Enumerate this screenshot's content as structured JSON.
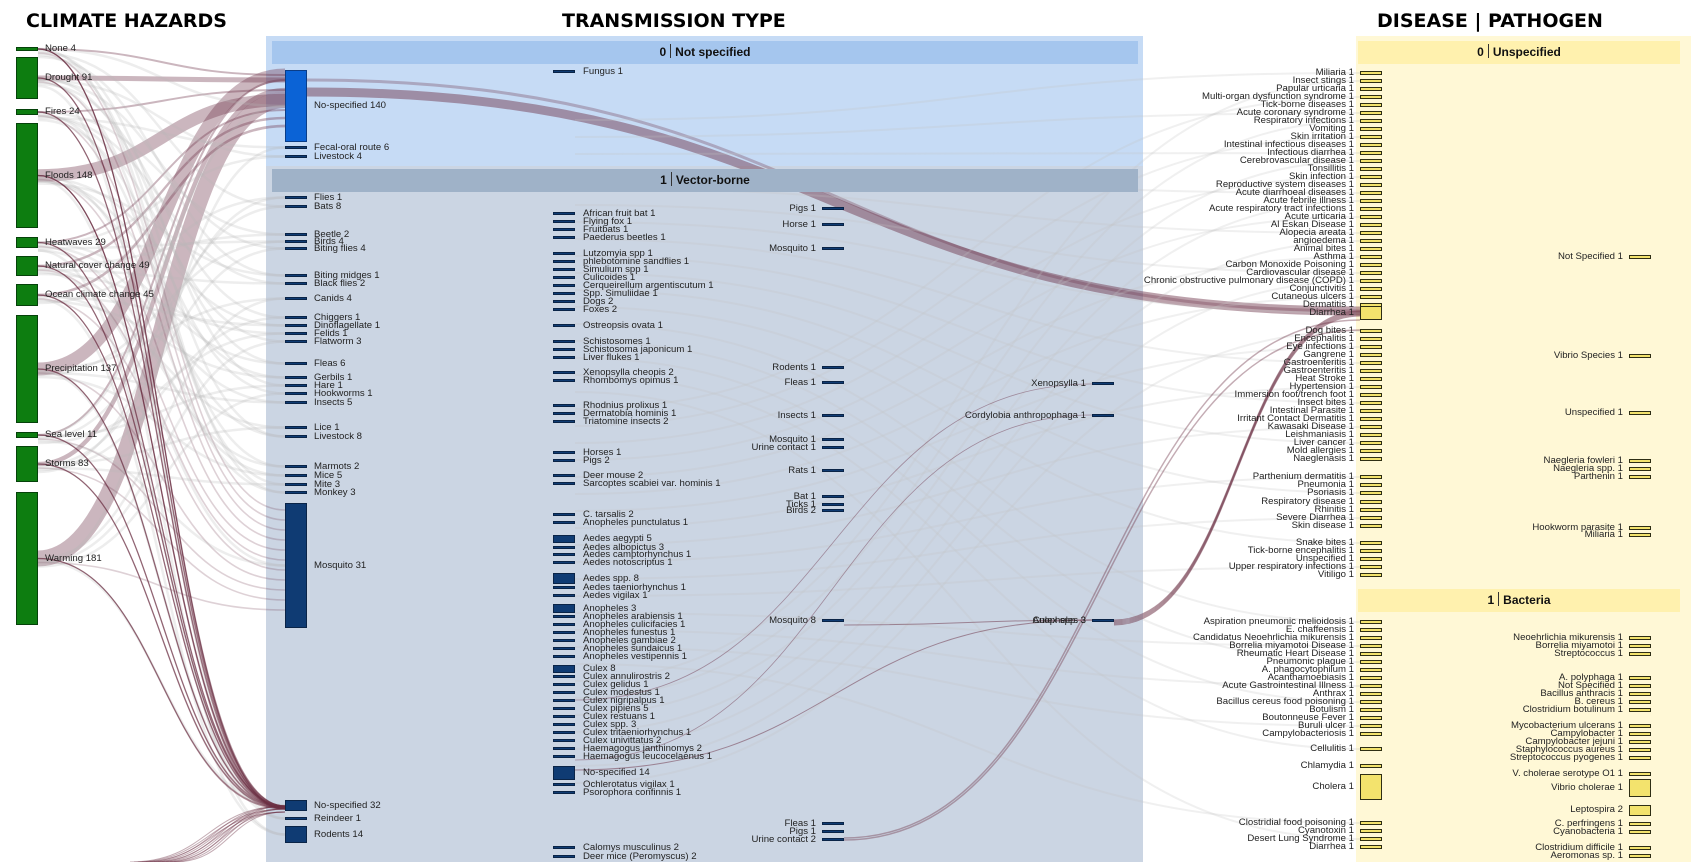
{
  "headers": {
    "hazards": "CLIMATE HAZARDS",
    "transmission": "TRANSMISSION TYPE",
    "disease": "DISEASE | PATHOGEN"
  },
  "transmission_groups": [
    {
      "num": "0",
      "label": "Not specified"
    },
    {
      "num": "1",
      "label": "Vector-borne"
    }
  ],
  "disease_groups": [
    {
      "num": "0",
      "label": "Unspecified"
    },
    {
      "num": "1",
      "label": "Bacteria"
    }
  ],
  "colors": {
    "hazard": "#0d7d10",
    "transmission": "#0f3b73",
    "transmission_highlight": "#0b63d6",
    "disease": "#f3e36d",
    "link": "#6b2f44",
    "panel_blue": "#c9d4e2",
    "panel_yellow": "#fff8d8"
  },
  "hazards": [
    {
      "name": "None",
      "count": "4"
    },
    {
      "name": "Drought",
      "count": "91"
    },
    {
      "name": "Fires",
      "count": "24"
    },
    {
      "name": "Floods",
      "count": "148"
    },
    {
      "name": "Heatwaves",
      "count": "29"
    },
    {
      "name": "Natural cover change",
      "count": "49"
    },
    {
      "name": "Ocean climate change",
      "count": "45"
    },
    {
      "name": "Precipitation",
      "count": "137"
    },
    {
      "name": "Sea level",
      "count": "11"
    },
    {
      "name": "Storms",
      "count": "83"
    },
    {
      "name": "Warming",
      "count": "181"
    }
  ],
  "trans_col1": [
    {
      "name": "No-specified",
      "count": "140"
    },
    {
      "name": "Fecal-oral route",
      "count": "6"
    },
    {
      "name": "Livestock",
      "count": "4"
    },
    {
      "name": "Flies",
      "count": "1"
    },
    {
      "name": "Bats",
      "count": "8"
    },
    {
      "name": "Beetle",
      "count": "2"
    },
    {
      "name": "Birds",
      "count": "4"
    },
    {
      "name": "Biting flies",
      "count": "4"
    },
    {
      "name": "Biting midges",
      "count": "1"
    },
    {
      "name": "Black flies",
      "count": "2"
    },
    {
      "name": "Canids",
      "count": "4"
    },
    {
      "name": "Chiggers",
      "count": "1"
    },
    {
      "name": "Dinoflagellate",
      "count": "1"
    },
    {
      "name": "Felids",
      "count": "1"
    },
    {
      "name": "Flatworm",
      "count": "3"
    },
    {
      "name": "Fleas",
      "count": "6"
    },
    {
      "name": "Gerbils",
      "count": "1"
    },
    {
      "name": "Hare",
      "count": "1"
    },
    {
      "name": "Hookworms",
      "count": "1"
    },
    {
      "name": "Insects",
      "count": "5"
    },
    {
      "name": "Lice",
      "count": "1"
    },
    {
      "name": "Livestock",
      "count": "8"
    },
    {
      "name": "Marmots",
      "count": "2"
    },
    {
      "name": "Mice",
      "count": "5"
    },
    {
      "name": "Mite",
      "count": "3"
    },
    {
      "name": "Monkey",
      "count": "3"
    },
    {
      "name": "Mosquito",
      "count": "31"
    },
    {
      "name": "No-specified",
      "count": "32"
    },
    {
      "name": "Reindeer",
      "count": "1"
    },
    {
      "name": "Rodents",
      "count": "14"
    }
  ],
  "trans_col2": [
    {
      "name": "Fungus",
      "count": "1"
    },
    {
      "name": "African fruit bat",
      "count": "1"
    },
    {
      "name": "Flying fox",
      "count": "1"
    },
    {
      "name": "Fruitbats",
      "count": "1"
    },
    {
      "name": "Paederus beetles",
      "count": "1"
    },
    {
      "name": "Lutzomyia spp",
      "count": "1"
    },
    {
      "name": "phlebotomine sandflies",
      "count": "1"
    },
    {
      "name": "Simulium spp",
      "count": "1"
    },
    {
      "name": "Culicoides",
      "count": "1"
    },
    {
      "name": "Cerqueirellum argentiscutum",
      "count": "1"
    },
    {
      "name": "Spp. Simuliidae",
      "count": "1"
    },
    {
      "name": "Dogs",
      "count": "2"
    },
    {
      "name": "Foxes",
      "count": "2"
    },
    {
      "name": "Ostreopsis ovata",
      "count": "1"
    },
    {
      "name": "Schistosomes",
      "count": "1"
    },
    {
      "name": "Schistosoma japonicum",
      "count": "1"
    },
    {
      "name": "Liver flukes",
      "count": "1"
    },
    {
      "name": "Xenopsylla cheopis",
      "count": "2"
    },
    {
      "name": "Rhombomys opimus",
      "count": "1"
    },
    {
      "name": "Rhodnius prolixus",
      "count": "1"
    },
    {
      "name": "Dermatobia hominis",
      "count": "1"
    },
    {
      "name": "Triatomine insects",
      "count": "2"
    },
    {
      "name": "Horses",
      "count": "1"
    },
    {
      "name": "Pigs",
      "count": "2"
    },
    {
      "name": "Deer mouse",
      "count": "2"
    },
    {
      "name": "Sarcoptes scabiei var. hominis",
      "count": "1"
    },
    {
      "name": "C. tarsalis",
      "count": "2"
    },
    {
      "name": "Anopheles punctulatus",
      "count": "1"
    },
    {
      "name": "Aedes aegypti",
      "count": "5"
    },
    {
      "name": "Aedes albopictus",
      "count": "3"
    },
    {
      "name": "Aedes camptorhynchus",
      "count": "1"
    },
    {
      "name": "Aedes notoscriptus",
      "count": "1"
    },
    {
      "name": "Aedes spp.",
      "count": "8"
    },
    {
      "name": "Aedes taeniorhynchus",
      "count": "1"
    },
    {
      "name": "Aedes vigilax",
      "count": "1"
    },
    {
      "name": "Anopheles",
      "count": "3"
    },
    {
      "name": "Anopheles arabiensis",
      "count": "1"
    },
    {
      "name": "Anopheles culicifacies",
      "count": "1"
    },
    {
      "name": "Anopheles funestus",
      "count": "1"
    },
    {
      "name": "Anopheles gambiae",
      "count": "2"
    },
    {
      "name": "Anopheles sundaicus",
      "count": "1"
    },
    {
      "name": "Anopheles vestipennis",
      "count": "1"
    },
    {
      "name": "Culex",
      "count": "8"
    },
    {
      "name": "Culex annulirostris",
      "count": "2"
    },
    {
      "name": "Culex gelidus",
      "count": "1"
    },
    {
      "name": "Culex modestus",
      "count": "1"
    },
    {
      "name": "Culex nigripalpus",
      "count": "1"
    },
    {
      "name": "Culex pipiens",
      "count": "5"
    },
    {
      "name": "Culex restuans",
      "count": "1"
    },
    {
      "name": "Culex spp.",
      "count": "3"
    },
    {
      "name": "Culex tritaeniorhynchus",
      "count": "1"
    },
    {
      "name": "Culex univittatus",
      "count": "2"
    },
    {
      "name": "Haemagogus janthinomys",
      "count": "2"
    },
    {
      "name": "Haemagogus leucocelaenus",
      "count": "1"
    },
    {
      "name": "No-specified",
      "count": "14"
    },
    {
      "name": "Ochlerotatus vigilax",
      "count": "1"
    },
    {
      "name": "Psorophora confinnis",
      "count": "1"
    },
    {
      "name": "Calomys musculinus",
      "count": "2"
    },
    {
      "name": "Deer mice (Peromyscus)",
      "count": "2"
    }
  ],
  "trans_col3": [
    {
      "name": "Pigs",
      "count": "1"
    },
    {
      "name": "Horse",
      "count": "1"
    },
    {
      "name": "Mosquito",
      "count": "1"
    },
    {
      "name": "Rodents",
      "count": "1"
    },
    {
      "name": "Fleas",
      "count": "1"
    },
    {
      "name": "Insects",
      "count": "1"
    },
    {
      "name": "Mosquito",
      "count": "1"
    },
    {
      "name": "Urine contact",
      "count": "1"
    },
    {
      "name": "Rats",
      "count": "1"
    },
    {
      "name": "Bat",
      "count": "1"
    },
    {
      "name": "Ticks",
      "count": "1"
    },
    {
      "name": "Birds",
      "count": "2"
    },
    {
      "name": "Mosquito",
      "count": "8"
    },
    {
      "name": "Fleas",
      "count": "1"
    },
    {
      "name": "Pigs",
      "count": "1"
    },
    {
      "name": "Urine contact",
      "count": "2"
    }
  ],
  "trans_col4": [
    {
      "name": "Xenopsylla",
      "count": "1"
    },
    {
      "name": "Cordylobia anthropophaga",
      "count": "1"
    },
    {
      "name": "Anopheles",
      "count": "3"
    },
    {
      "name": "Culex spp.",
      "count": "3"
    }
  ],
  "disease_col1": [
    {
      "name": "Miliaria",
      "count": "1"
    },
    {
      "name": "Insect stings",
      "count": "1"
    },
    {
      "name": "Papular urticaria",
      "count": "1"
    },
    {
      "name": "Multi-organ dysfunction syndrome",
      "count": "1"
    },
    {
      "name": "Tick-borne diseases",
      "count": "1"
    },
    {
      "name": "Acute coronary syndrome",
      "count": "1"
    },
    {
      "name": "Respiratory infections",
      "count": "1"
    },
    {
      "name": "Vomiting",
      "count": "1"
    },
    {
      "name": "Skin irritation",
      "count": "1"
    },
    {
      "name": "Intestinal infectious diseases",
      "count": "1"
    },
    {
      "name": "Infectious diarrhea",
      "count": "1"
    },
    {
      "name": "Cerebrovascular disease",
      "count": "1"
    },
    {
      "name": "Tonsillitis",
      "count": "1"
    },
    {
      "name": "Skin infection",
      "count": "1"
    },
    {
      "name": "Reproductive system diseases",
      "count": "1"
    },
    {
      "name": "Acute diarrhoeal diseases",
      "count": "1"
    },
    {
      "name": "Acute febrile illness",
      "count": "1"
    },
    {
      "name": "Acute respiratory tract infections",
      "count": "1"
    },
    {
      "name": "Acute urticaria",
      "count": "1"
    },
    {
      "name": "Al Eskan Disease",
      "count": "1"
    },
    {
      "name": "Alopecia areata",
      "count": "1"
    },
    {
      "name": "angioedema",
      "count": "1"
    },
    {
      "name": "Animal bites",
      "count": "1"
    },
    {
      "name": "Asthma",
      "count": "1"
    },
    {
      "name": "Carbon Monoxide Poisoning",
      "count": "1"
    },
    {
      "name": "Cardiovascular disease",
      "count": "1"
    },
    {
      "name": "Chronic obstructive pulmonary disease (COPD)",
      "count": "1"
    },
    {
      "name": "Conjunctivitis",
      "count": "1"
    },
    {
      "name": "Cutaneous ulcers",
      "count": "1"
    },
    {
      "name": "Dermatitis",
      "count": "1"
    },
    {
      "name": "Diarrhea",
      "count": "1"
    },
    {
      "name": "Dog bites",
      "count": "1"
    },
    {
      "name": "Encephalitis",
      "count": "1"
    },
    {
      "name": "Eye infections",
      "count": "1"
    },
    {
      "name": "Gangrene",
      "count": "1"
    },
    {
      "name": "Gastroenteritis",
      "count": "1"
    },
    {
      "name": "Gastroenteritis",
      "count": "1"
    },
    {
      "name": "Heat Stroke",
      "count": "1"
    },
    {
      "name": "Hypertension",
      "count": "1"
    },
    {
      "name": "Immersion foot/trench foot",
      "count": "1"
    },
    {
      "name": "Insect bites",
      "count": "1"
    },
    {
      "name": "Intestinal Parasite",
      "count": "1"
    },
    {
      "name": "Irritant Contact Dermatitis",
      "count": "1"
    },
    {
      "name": "Kawasaki Disease",
      "count": "1"
    },
    {
      "name": "Leishmaniasis",
      "count": "1"
    },
    {
      "name": "Liver cancer",
      "count": "1"
    },
    {
      "name": "Mold allergies",
      "count": "1"
    },
    {
      "name": "Naeglenasis",
      "count": "1"
    },
    {
      "name": "Parthenium dermatitis",
      "count": "1"
    },
    {
      "name": "Pneumonia",
      "count": "1"
    },
    {
      "name": "Psoriasis",
      "count": "1"
    },
    {
      "name": "Respiratory disease",
      "count": "1"
    },
    {
      "name": "Rhinitis",
      "count": "1"
    },
    {
      "name": "Severe Diarrhea",
      "count": "1"
    },
    {
      "name": "Skin disease",
      "count": "1"
    },
    {
      "name": "Snake bites",
      "count": "1"
    },
    {
      "name": "Tick-borne encephalitis",
      "count": "1"
    },
    {
      "name": "Unspecified",
      "count": "1"
    },
    {
      "name": "Upper respiratory infections",
      "count": "1"
    },
    {
      "name": "Vitiligo",
      "count": "1"
    },
    {
      "name": "Aspiration pneumonic melioidosis",
      "count": "1"
    },
    {
      "name": "E. chaffeensis",
      "count": "1"
    },
    {
      "name": "Candidatus Neoehrlichia mikurensis",
      "count": "1"
    },
    {
      "name": "Borrelia miyamotoi Disease",
      "count": "1"
    },
    {
      "name": "Rheumatic Heart Disease",
      "count": "1"
    },
    {
      "name": "Pneumonic plague",
      "count": "1"
    },
    {
      "name": "A. phagocytophilum",
      "count": "1"
    },
    {
      "name": "Acanthamoebiasis",
      "count": "1"
    },
    {
      "name": "Acute Gastrointestinal Illness",
      "count": "1"
    },
    {
      "name": "Anthrax",
      "count": "1"
    },
    {
      "name": "Bacillus cereus food poisoning",
      "count": "1"
    },
    {
      "name": "Botulism",
      "count": "1"
    },
    {
      "name": "Boutonneuse Fever",
      "count": "1"
    },
    {
      "name": "Buruli ulcer",
      "count": "1"
    },
    {
      "name": "Campylobacteriosis",
      "count": "1"
    },
    {
      "name": "Cellulitis",
      "count": "1"
    },
    {
      "name": "Chlamydia",
      "count": "1"
    },
    {
      "name": "Cholera",
      "count": "1"
    },
    {
      "name": "Clostridial food poisoning",
      "count": "1"
    },
    {
      "name": "Cyanotoxin",
      "count": "1"
    },
    {
      "name": "Desert Lung Syndrome",
      "count": "1"
    },
    {
      "name": "Diarrhea",
      "count": "1"
    }
  ],
  "disease_col2": [
    {
      "name": "Not Specified",
      "count": "1"
    },
    {
      "name": "Vibrio Species",
      "count": "1"
    },
    {
      "name": "Unspecified",
      "count": "1"
    },
    {
      "name": "Naegleria fowleri",
      "count": "1"
    },
    {
      "name": "Naegleria spp.",
      "count": "1"
    },
    {
      "name": "Parthenin",
      "count": "1"
    },
    {
      "name": "Hookworm parasite",
      "count": "1"
    },
    {
      "name": "Miliaria",
      "count": "1"
    },
    {
      "name": "Neoehrlichia mikurensis",
      "count": "1"
    },
    {
      "name": "Borrelia miyamotoi",
      "count": "1"
    },
    {
      "name": "Streptococcus",
      "count": "1"
    },
    {
      "name": "A. polyphaga",
      "count": "1"
    },
    {
      "name": "Not Specified",
      "count": "1"
    },
    {
      "name": "Bacillus anthracis",
      "count": "1"
    },
    {
      "name": "B. cereus",
      "count": "1"
    },
    {
      "name": "Clostridium botulinum",
      "count": "1"
    },
    {
      "name": "Mycobacterium ulcerans",
      "count": "1"
    },
    {
      "name": "Campylobacter",
      "count": "1"
    },
    {
      "name": "Campylobacter jejuni",
      "count": "1"
    },
    {
      "name": "Staphylococcus aureus",
      "count": "1"
    },
    {
      "name": "Streptococcus pyogenes",
      "count": "1"
    },
    {
      "name": "V. cholerae serotype O1",
      "count": "1"
    },
    {
      "name": "Vibrio cholerae",
      "count": "1"
    },
    {
      "name": "Leptospira",
      "count": "2"
    },
    {
      "name": "C. perfringens",
      "count": "1"
    },
    {
      "name": "Cyanobacteria",
      "count": "1"
    },
    {
      "name": "Clostridium difficile",
      "count": "1"
    },
    {
      "name": "Aeromonas sp.",
      "count": "1"
    }
  ]
}
